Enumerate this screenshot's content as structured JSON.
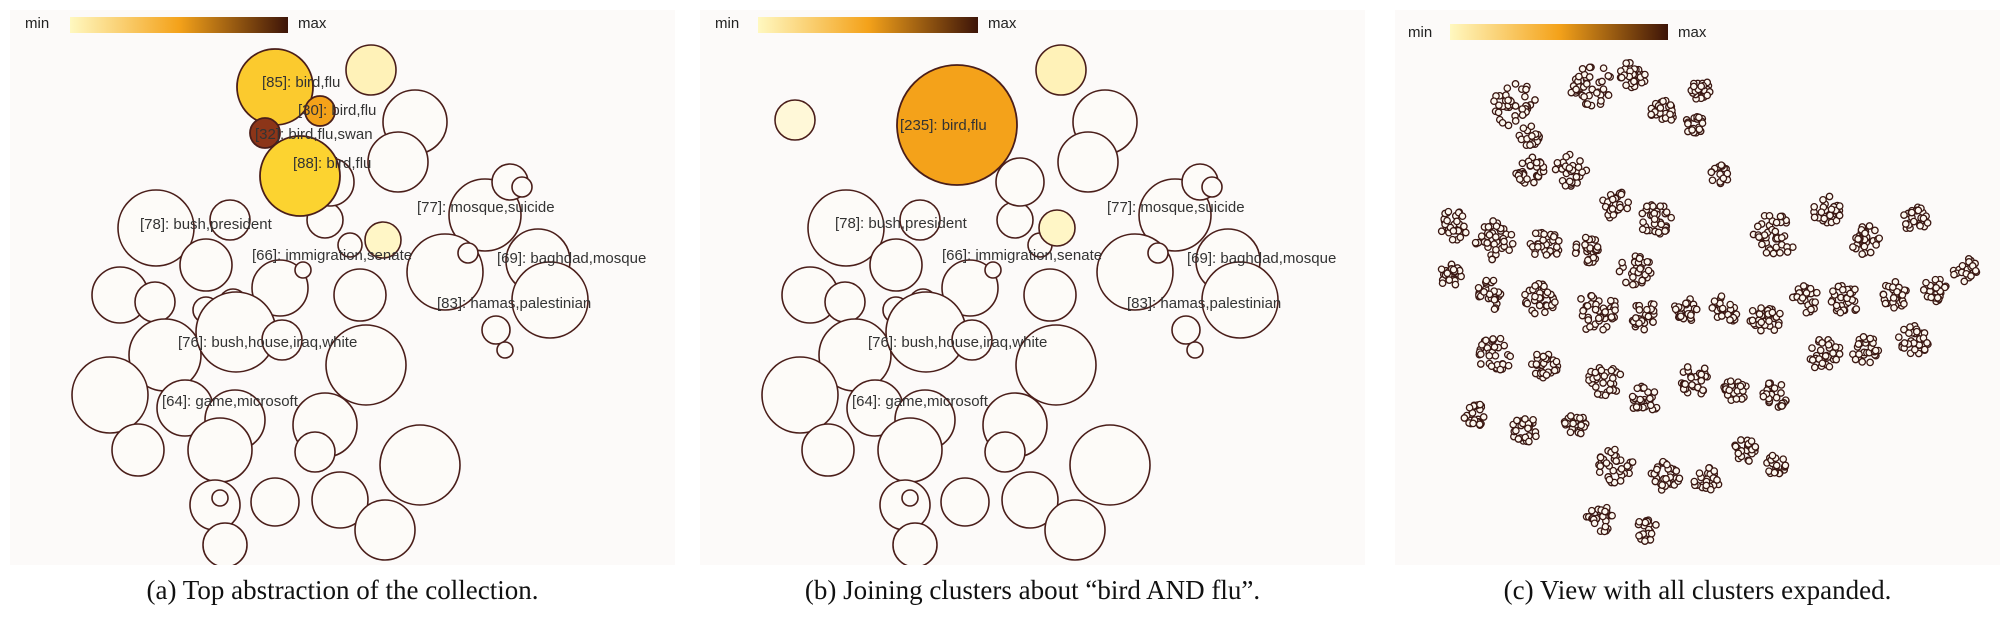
{
  "colors": {
    "low": "#fff8c0",
    "mid": "#f4a21a",
    "high": "#3d1408",
    "node": "#fdfbf8",
    "stroke": "#4a1e1a"
  },
  "legend": {
    "min_label": "min",
    "max_label": "max"
  },
  "panels": [
    {
      "caption": "(a)  Top abstraction of the collection.",
      "labels": [
        "[85]: bird,flu",
        "[30]: bird,flu",
        "[32]: bird,flu,swan",
        "[88]: bird,flu",
        "[78]: bush,president",
        "[77]: mosque,suicide",
        "[66]: immigration,senate",
        "[69]: baghdad,mosque",
        "[83]: hamas,palestinian",
        "[76]: bush,house,iraq,white",
        "[64]: game,microsoft"
      ]
    },
    {
      "caption": "(b)  Joining clusters about “bird AND flu”.",
      "labels": [
        "[235]: bird,flu",
        "[78]: bush,president",
        "[77]: mosque,suicide",
        "[66]: immigration,senate",
        "[69]: baghdad,mosque",
        "[83]: hamas,palestinian",
        "[76]: bush,house,iraq,white",
        "[64]: game,microsoft"
      ]
    },
    {
      "caption": "(c)  View with all clusters expanded."
    }
  ]
}
